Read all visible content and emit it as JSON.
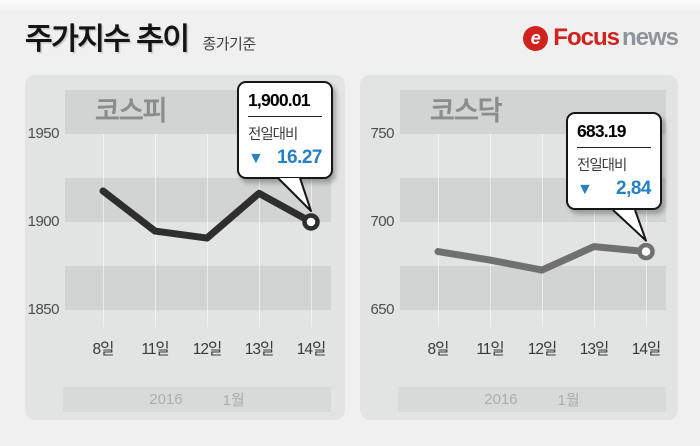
{
  "header": {
    "title": "주가지수 추이",
    "subtitle": "종가기준",
    "logo": {
      "icon": "focus-swirl-icon",
      "icon_glyph": "e",
      "brand": "Focus",
      "suffix": "news"
    }
  },
  "colors": {
    "page_bg": "#f0f0f0",
    "panel_bg": "#e2e3e3",
    "band": "#d2d3d3",
    "footer_band": "#d8d9d9",
    "brand_red": "#d0221f",
    "delta_blue": "#2580c4",
    "kospi_line": "#2e2e2e",
    "kosdaq_line": "#707070"
  },
  "chart_data": [
    {
      "type": "line",
      "title": "코스피",
      "categories": [
        "8일",
        "11일",
        "12일",
        "13일",
        "14일"
      ],
      "values": [
        1917.62,
        1894.84,
        1890.86,
        1916.28,
        1900.01
      ],
      "ylim": [
        1828,
        1975
      ],
      "y_ticks": [
        1950,
        1900,
        1850
      ],
      "grid": "horizontal-bands-25pt",
      "legend": "none",
      "line_color": "#2e2e2e",
      "last_point_marker": "open-circle",
      "callout": {
        "value": "1,900.01",
        "label": "전일대비",
        "arrow": "▼",
        "delta": "16.27",
        "delta_color": "#2580c4"
      },
      "footer": {
        "year": "2016",
        "month": "1월"
      }
    },
    {
      "type": "line",
      "title": "코스닥",
      "categories": [
        "8일",
        "11일",
        "12일",
        "13일",
        "14일"
      ],
      "values": [
        683.21,
        678.37,
        672.67,
        686.03,
        683.19
      ],
      "ylim": [
        628,
        775
      ],
      "y_ticks": [
        750,
        700,
        650
      ],
      "grid": "horizontal-bands-25pt",
      "legend": "none",
      "line_color": "#707070",
      "last_point_marker": "open-circle",
      "callout": {
        "value": "683.19",
        "label": "전일대비",
        "arrow": "▼",
        "delta": "2,84",
        "delta_color": "#2580c4"
      },
      "footer": {
        "year": "2016",
        "month": "1월"
      }
    }
  ]
}
